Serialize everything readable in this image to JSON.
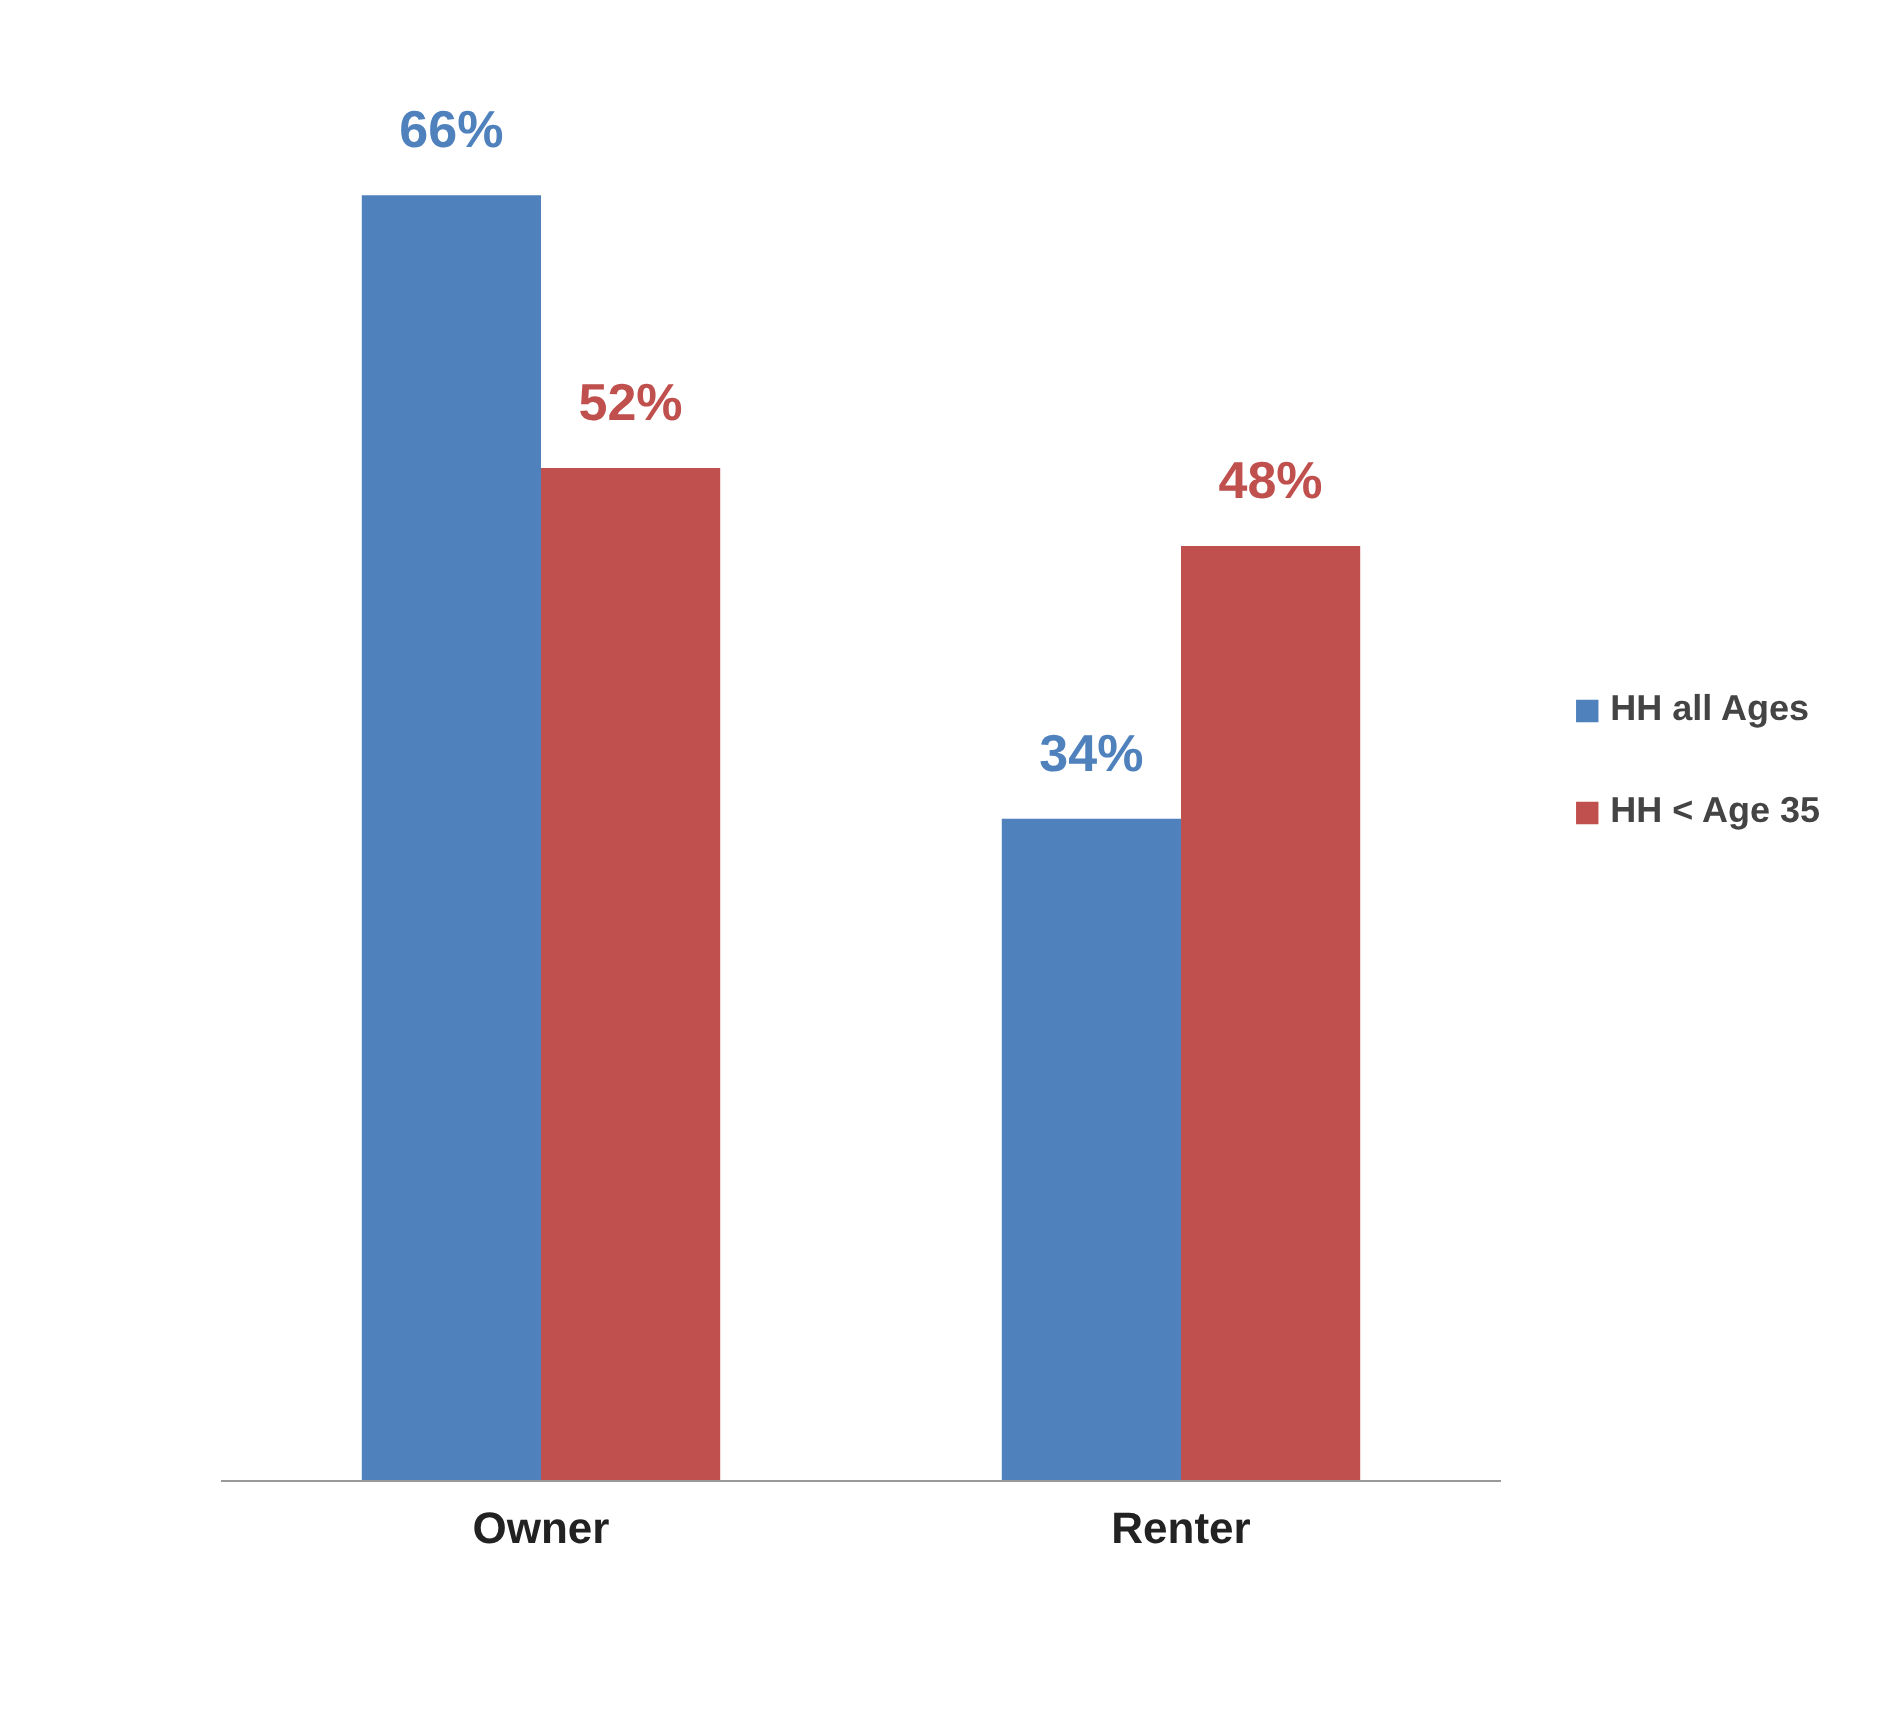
{
  "chart_data": {
    "type": "bar",
    "categories": [
      "Owner",
      "Renter"
    ],
    "series": [
      {
        "name": "HH all Ages",
        "color": "#4f81bd",
        "values": [
          66,
          34
        ],
        "value_labels": [
          "66%",
          "34%"
        ]
      },
      {
        "name": "HH < Age 35",
        "color": "#c0504d",
        "values": [
          52,
          48
        ],
        "value_labels": [
          "52%",
          "48%"
        ]
      }
    ],
    "legend": "right",
    "grid": false
  }
}
